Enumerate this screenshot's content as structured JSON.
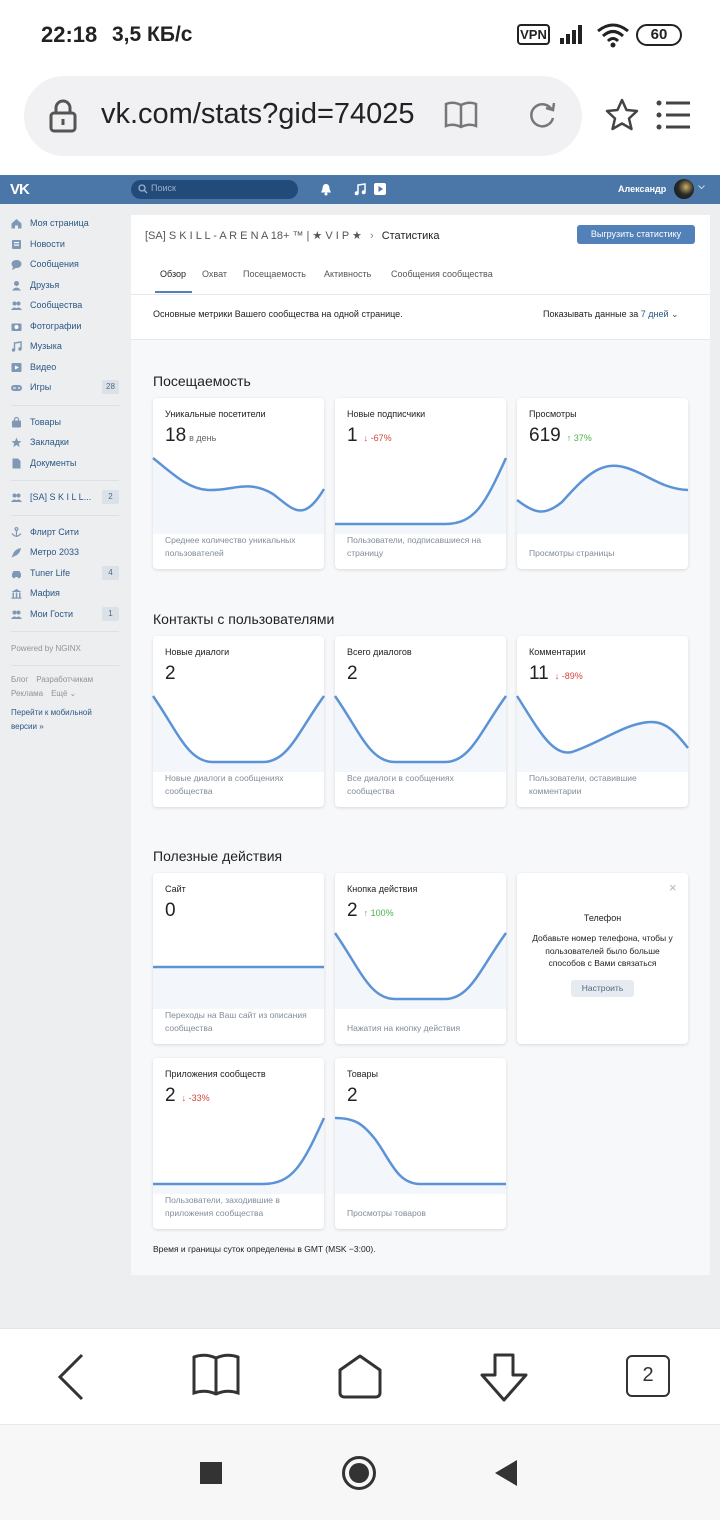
{
  "status_bar": {
    "time": "22:18",
    "speed": "3,5 КБ/с",
    "vpn": "VPN",
    "battery": "60"
  },
  "browser": {
    "url": "vk.com/stats?gid=74025",
    "tabs_count": "2"
  },
  "vk_header": {
    "logo": "VK",
    "search_placeholder": "Поиск",
    "user_name": "Александр"
  },
  "menu": {
    "items1": [
      {
        "label": "Моя страница",
        "icon": "home-icon"
      },
      {
        "label": "Новости",
        "icon": "news-icon"
      },
      {
        "label": "Сообщения",
        "icon": "messages-icon"
      },
      {
        "label": "Друзья",
        "icon": "friends-icon"
      },
      {
        "label": "Сообщества",
        "icon": "groups-icon"
      },
      {
        "label": "Фотографии",
        "icon": "camera-icon"
      },
      {
        "label": "Музыка",
        "icon": "music-icon"
      },
      {
        "label": "Видео",
        "icon": "video-icon"
      },
      {
        "label": "Игры",
        "icon": "gamepad-icon",
        "count": "28"
      }
    ],
    "items2": [
      {
        "label": "Товары",
        "icon": "bag-icon"
      },
      {
        "label": "Закладки",
        "icon": "star-icon"
      },
      {
        "label": "Документы",
        "icon": "document-icon"
      }
    ],
    "items3": [
      {
        "label": "[SA] S K I L L...",
        "icon": "groups-icon",
        "count": "2"
      }
    ],
    "items4": [
      {
        "label": "Флирт Сити",
        "icon": "anchor-icon"
      },
      {
        "label": "Метро 2033",
        "icon": "rocket-icon"
      },
      {
        "label": "Tuner Life",
        "icon": "car-icon",
        "count": "4"
      },
      {
        "label": "Мафия",
        "icon": "bank-icon"
      },
      {
        "label": "Мои Гости",
        "icon": "guests-icon",
        "count": "1"
      }
    ],
    "powered": "Powered by NGINX",
    "footer_links": [
      "Блог",
      "Разработчикам",
      "Реклама",
      "Ещё"
    ],
    "mobile_link": "Перейти к мобильной версии »"
  },
  "page": {
    "breadcrumb_group": "[SA] S K I L L - A R E N A 18+ ™ | ★ V I P ★",
    "breadcrumb_current": "Статистика",
    "export_button": "Выгрузить статистику",
    "tabs": [
      "Обзор",
      "Охват",
      "Посещаемость",
      "Активность",
      "Сообщения сообщества"
    ],
    "description": "Основные метрики Вашего сообщества на одной странице.",
    "period_prefix": "Показывать данные за",
    "period_value": "7 дней",
    "timezone_note": "Время и границы суток определены в GMT (MSK −3:00)."
  },
  "sections": {
    "attendance": {
      "title": "Посещаемость",
      "cards": [
        {
          "title": "Уникальные посетители",
          "value": "18",
          "sub": "в день",
          "desc": "Среднее количество уникальных пользователей"
        },
        {
          "title": "Новые подписчики",
          "value": "1",
          "delta": "-67%",
          "desc": "Пользователи, подписавшиеся на страницу"
        },
        {
          "title": "Просмотры",
          "value": "619",
          "delta": "37%",
          "desc": "Просмотры страницы"
        }
      ]
    },
    "contacts": {
      "title": "Контакты с пользователями",
      "cards": [
        {
          "title": "Новые диалоги",
          "value": "2",
          "desc": "Новые диалоги в сообщениях сообщества"
        },
        {
          "title": "Всего диалогов",
          "value": "2",
          "desc": "Все диалоги в сообщениях сообщества"
        },
        {
          "title": "Комментарии",
          "value": "11",
          "delta": "-89%",
          "desc": "Пользователи, оставившие комментарии"
        }
      ]
    },
    "useful": {
      "title": "Полезные действия",
      "cards": [
        {
          "title": "Сайт",
          "value": "0",
          "desc": "Переходы на Ваш сайт из описания сообщества"
        },
        {
          "title": "Кнопка действия",
          "value": "2",
          "delta": "100%",
          "desc": "Нажатия на кнопку действия"
        },
        {
          "title": "Приложения сообществ",
          "value": "2",
          "delta": "-33%",
          "desc": "Пользователи, заходившие в приложения сообщества"
        },
        {
          "title": "Товары",
          "value": "2",
          "desc": "Просмотры товаров"
        }
      ],
      "phone_card": {
        "close": "×",
        "title": "Телефон",
        "desc": "Добавьте номер телефона, чтобы у пользователей было больше способов с Вами связаться",
        "button": "Настроить"
      }
    }
  },
  "colors": {
    "vk_blue": "#4a76a8",
    "chart_line": "#5b93d6",
    "down": "#d4463d",
    "up": "#4bb34b"
  }
}
